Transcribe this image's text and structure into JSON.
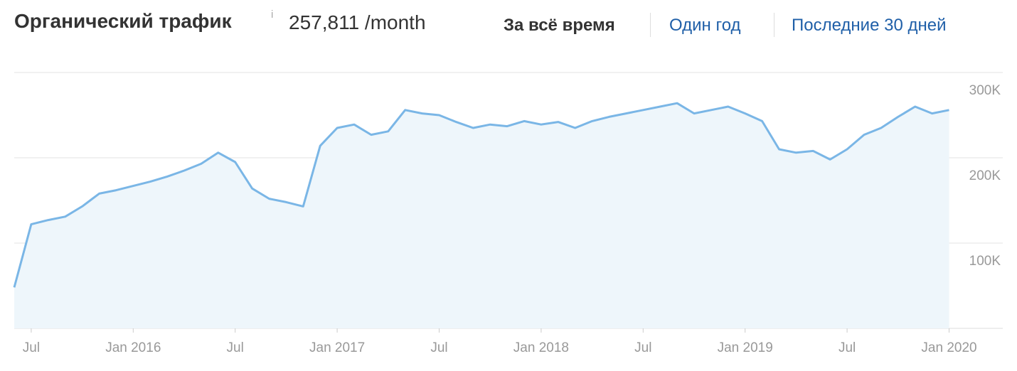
{
  "header": {
    "title": "Органический трафик",
    "info": "i",
    "traffic": "257,811 /month",
    "tabs": [
      "За всё время",
      "Один год",
      "Последние 30 дней"
    ]
  },
  "chart_data": {
    "type": "area",
    "categories": [
      null,
      "Jul",
      null,
      null,
      null,
      null,
      null,
      "Jan 2016",
      null,
      null,
      null,
      null,
      null,
      "Jul",
      null,
      null,
      null,
      null,
      null,
      "Jan 2017",
      null,
      null,
      null,
      null,
      null,
      "Jul",
      null,
      null,
      null,
      null,
      null,
      "Jan 2018",
      null,
      null,
      null,
      null,
      null,
      "Jul",
      null,
      null,
      null,
      null,
      null,
      "Jan 2019",
      null,
      null,
      null,
      null,
      null,
      "Jul",
      null,
      null,
      null,
      null,
      null,
      "Jan 2020"
    ],
    "values": [
      48000,
      122000,
      127000,
      131000,
      143000,
      158000,
      162000,
      167000,
      172000,
      178000,
      185000,
      193000,
      206000,
      195000,
      164000,
      152000,
      148000,
      143000,
      214000,
      235000,
      239000,
      227000,
      231000,
      256000,
      252000,
      250000,
      242000,
      235000,
      239000,
      237000,
      243000,
      239000,
      242000,
      235000,
      243000,
      248000,
      252000,
      256000,
      260000,
      264000,
      252000,
      256000,
      260000,
      252000,
      243000,
      210000,
      206000,
      208000,
      198000,
      210000,
      227000,
      235000,
      248000,
      260000,
      252000,
      256000
    ],
    "color": "#7ab6e6",
    "ylim": [
      0,
      300000
    ],
    "yticks": [
      {
        "value": 100000,
        "label": "100K"
      },
      {
        "value": 200000,
        "label": "200K"
      },
      {
        "value": 300000,
        "label": "300K"
      }
    ],
    "grid": true
  }
}
